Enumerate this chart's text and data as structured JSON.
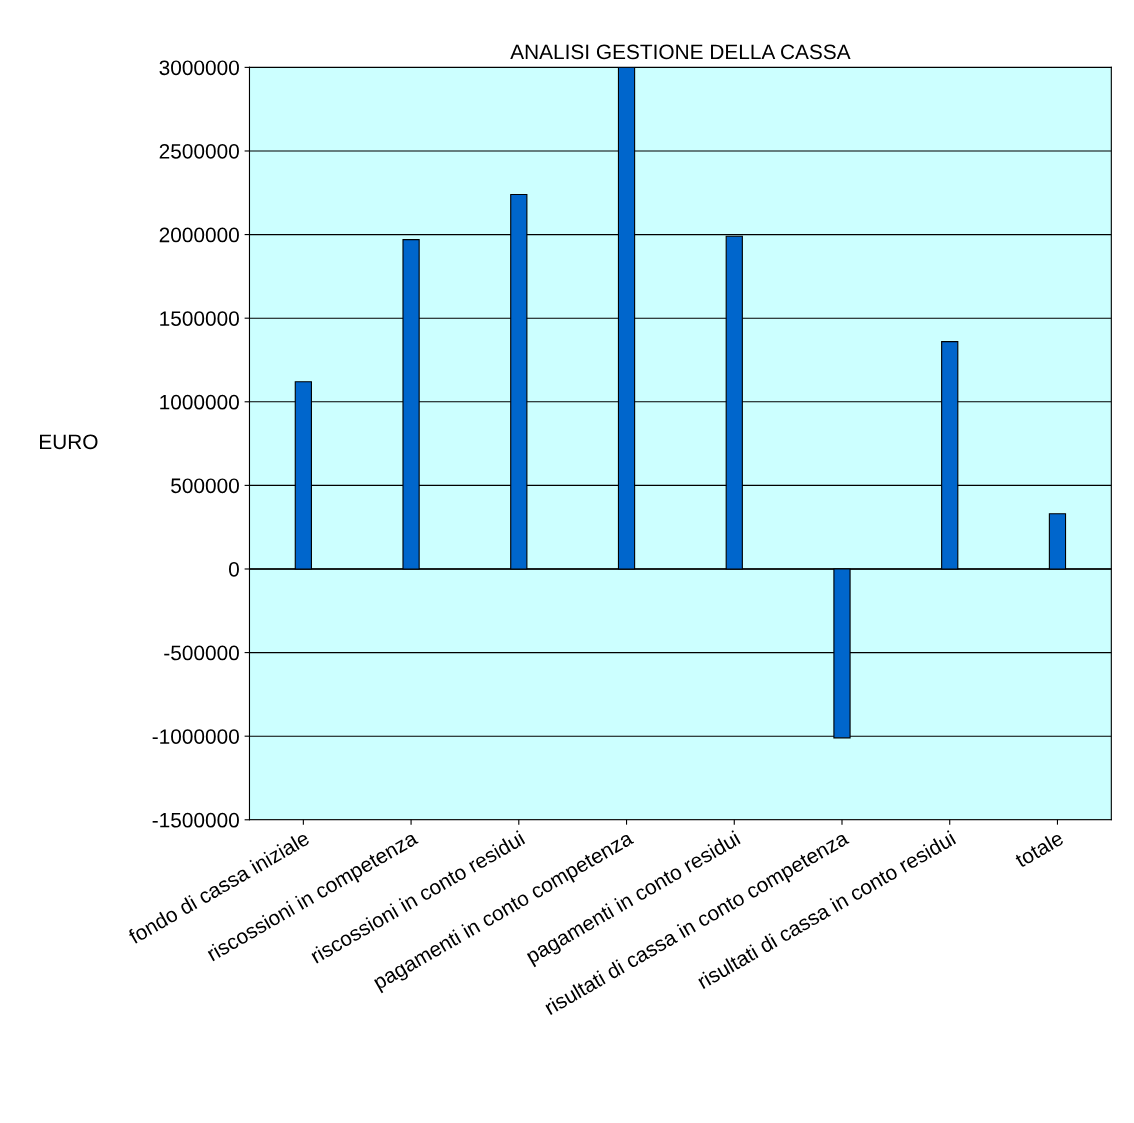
{
  "chart_data": {
    "type": "bar",
    "title": "ANALISI GESTIONE DELLA CASSA",
    "ylabel": "EURO",
    "categories": [
      "fondo di cassa iniziale",
      "riscossioni in competenza",
      "riscossioni in conto residui",
      "pagamenti in conto competenza",
      "pagamenti in conto residui",
      "risultati di cassa in conto competenza",
      "risultati di cassa in conto residui",
      "totale"
    ],
    "values": [
      1120000,
      1970000,
      2240000,
      3000000,
      1990000,
      -1010000,
      1360000,
      330000
    ],
    "color": "#0066cc",
    "ylim": [
      -1500000,
      3000000
    ],
    "yticks": [
      -1500000,
      -1000000,
      -500000,
      0,
      500000,
      1000000,
      1500000,
      2000000,
      2500000,
      3000000
    ],
    "grid": "y",
    "legend": false
  }
}
